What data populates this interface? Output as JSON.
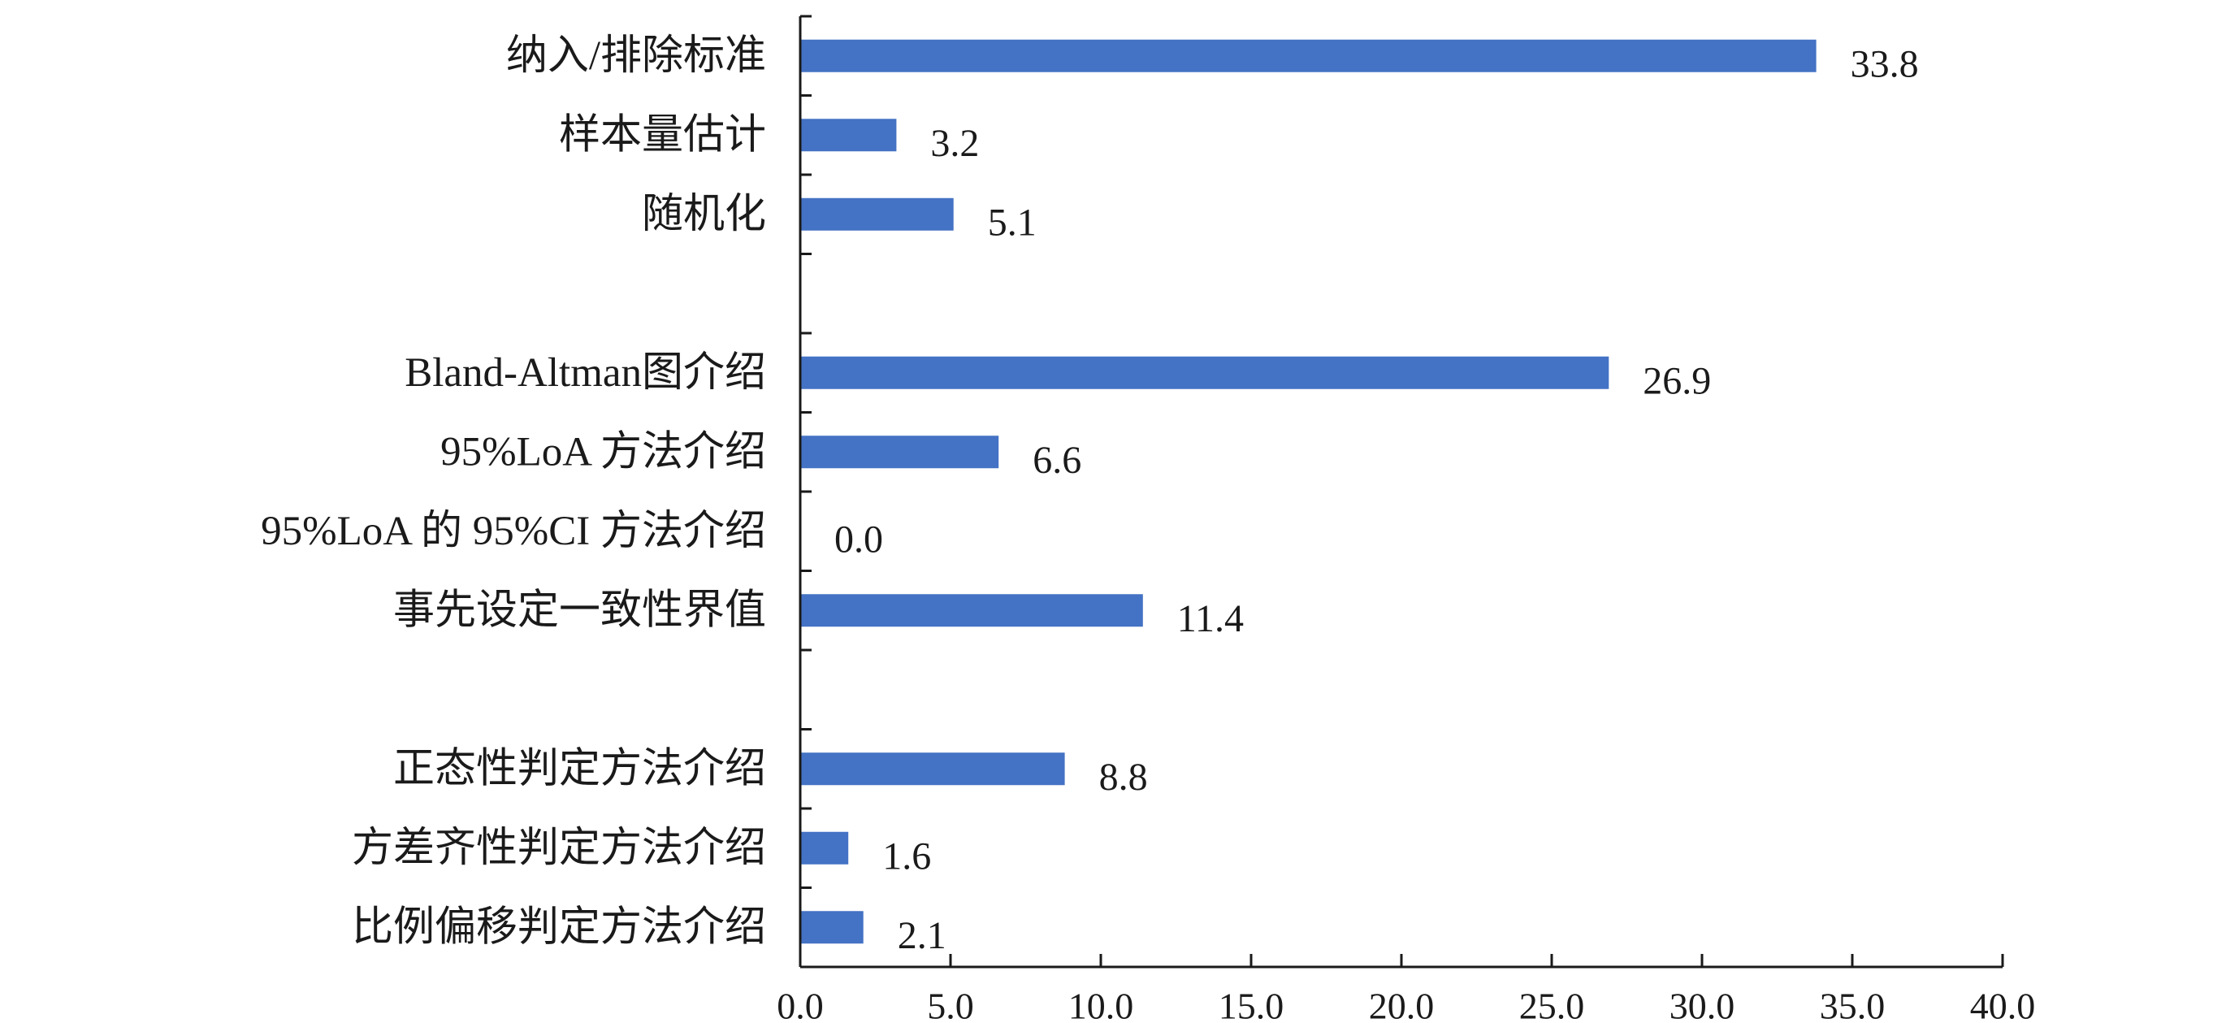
{
  "chart_data": {
    "type": "bar",
    "orientation": "horizontal",
    "title": "",
    "xlabel": "",
    "ylabel": "",
    "xlim": [
      0,
      40
    ],
    "x_ticks": [
      "0.0",
      "5.0",
      "10.0",
      "15.0",
      "20.0",
      "25.0",
      "30.0",
      "35.0",
      "40.0"
    ],
    "grid": false,
    "legend": "none",
    "bar_color": "#4472C4",
    "categories": [
      "纳入/排除标准",
      "样本量估计",
      "随机化",
      "",
      "Bland-Altman图介绍",
      "95%LoA 方法介绍",
      "95%LoA 的 95%CI 方法介绍",
      "事先设定一致性界值",
      "",
      "正态性判定方法介绍",
      "方差齐性判定方法介绍",
      "比例偏移判定方法介绍"
    ],
    "values": [
      33.8,
      3.2,
      5.1,
      null,
      26.9,
      6.6,
      0.0,
      11.4,
      null,
      8.8,
      1.6,
      2.1
    ],
    "value_labels": [
      "33.8",
      "3.2",
      "5.1",
      "",
      "26.9",
      "6.6",
      "0.0",
      "11.4",
      "",
      "8.8",
      "1.6",
      "2.1"
    ]
  }
}
